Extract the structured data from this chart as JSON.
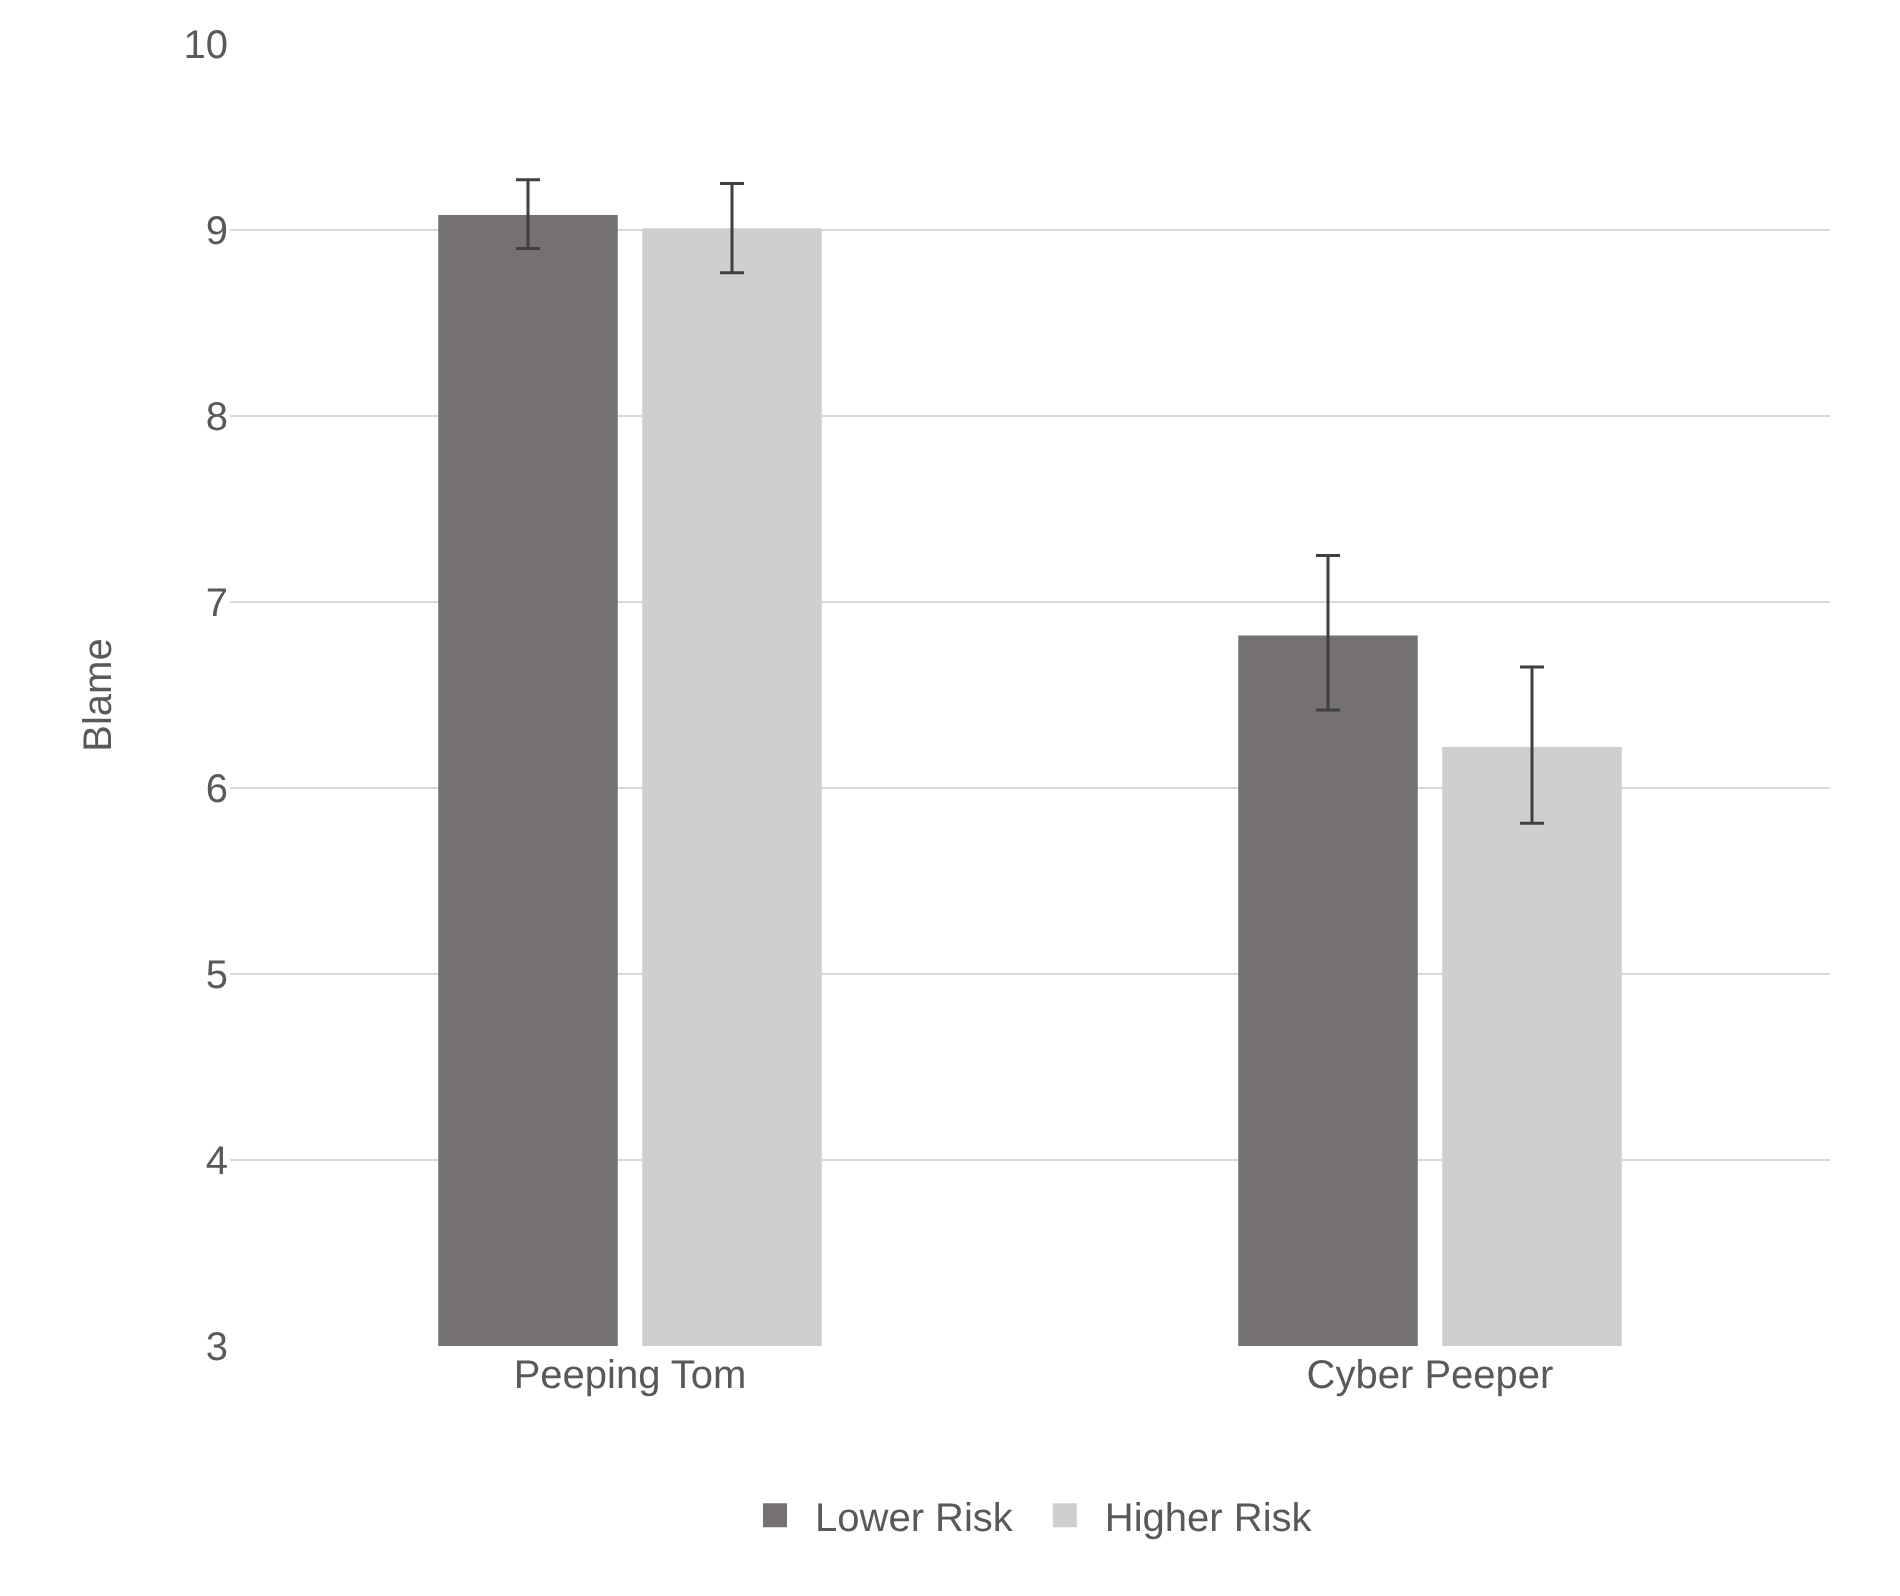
{
  "chart_data": {
    "type": "bar",
    "ylabel": "Blame",
    "categories": [
      "Peeping Tom",
      "Cyber Peeper"
    ],
    "series": [
      {
        "name": "Lower Risk",
        "color": "#767171",
        "values": [
          9.08,
          6.82
        ],
        "errors": [
          [
            8.9,
            9.27
          ],
          [
            6.42,
            7.25
          ]
        ]
      },
      {
        "name": "Higher Risk",
        "color": "#d0cece",
        "values": [
          9.01,
          6.22
        ],
        "errors": [
          [
            8.77,
            9.25
          ],
          [
            5.81,
            6.65
          ]
        ]
      }
    ],
    "ylim": [
      3,
      10
    ],
    "yticks": [
      3,
      4,
      5,
      6,
      7,
      8,
      9,
      10
    ],
    "grid": "y",
    "legend": "bottom"
  }
}
